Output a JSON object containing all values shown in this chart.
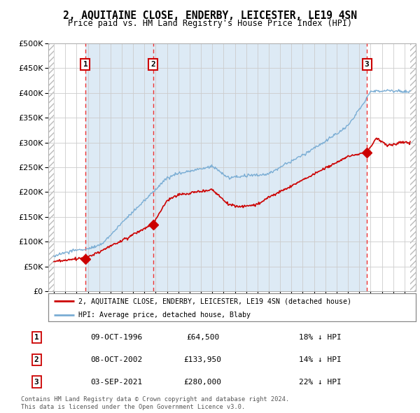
{
  "title": "2, AQUITAINE CLOSE, ENDERBY, LEICESTER, LE19 4SN",
  "subtitle": "Price paid vs. HM Land Registry's House Price Index (HPI)",
  "legend_line1": "2, AQUITAINE CLOSE, ENDERBY, LEICESTER, LE19 4SN (detached house)",
  "legend_line2": "HPI: Average price, detached house, Blaby",
  "transactions": [
    {
      "num": 1,
      "date": "09-OCT-1996",
      "price": 64500,
      "hpi_rel": "18% ↓ HPI",
      "x": 1996.78
    },
    {
      "num": 2,
      "date": "08-OCT-2002",
      "price": 133950,
      "hpi_rel": "14% ↓ HPI",
      "x": 2002.78
    },
    {
      "num": 3,
      "date": "03-SEP-2021",
      "price": 280000,
      "hpi_rel": "22% ↓ HPI",
      "x": 2021.67
    }
  ],
  "footnote1": "Contains HM Land Registry data © Crown copyright and database right 2024.",
  "footnote2": "This data is licensed under the Open Government Licence v3.0.",
  "price_color": "#cc0000",
  "hpi_color": "#7aadd4",
  "bg_highlight": "#ddeaf5",
  "hatch_color": "#cccccc",
  "grid_color": "#cccccc",
  "vline_color": "#ee3333",
  "ylim": [
    0,
    500000
  ],
  "yticks": [
    0,
    50000,
    100000,
    150000,
    200000,
    250000,
    300000,
    350000,
    400000,
    450000,
    500000
  ],
  "xmin": 1993.5,
  "xmax": 2026.0,
  "data_xstart": 1994.0,
  "data_xend": 2025.5,
  "highlight_xstart": 1996.78,
  "highlight_xend": 2021.67
}
